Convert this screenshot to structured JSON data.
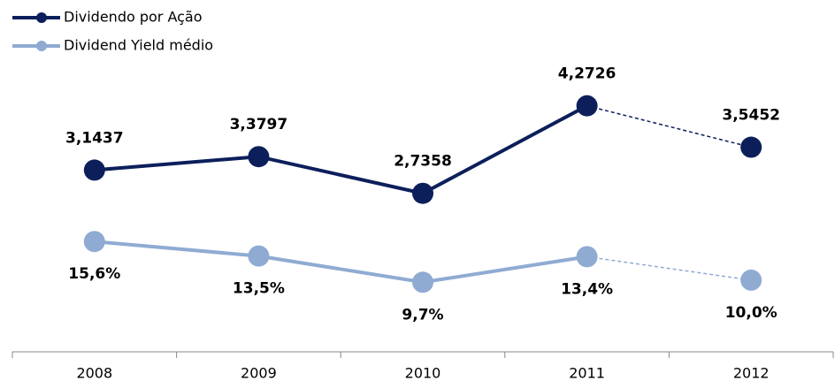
{
  "chart_data": {
    "type": "line",
    "categories": [
      "2008",
      "2009",
      "2010",
      "2011",
      "2012"
    ],
    "ylim": [
      0,
      6.13
    ],
    "y2lim": [
      0,
      50.6
    ],
    "legend": "top-left",
    "series": [
      {
        "name": "Dividendo por Ação",
        "color": "#0c1f5b",
        "dash_last": true,
        "values": [
          3.1437,
          3.3797,
          2.7358,
          4.2726,
          3.5452
        ],
        "value_labels": [
          "3,1437",
          "3,3797",
          "2,7358",
          "4,2726",
          "3,5452"
        ]
      },
      {
        "name": "Dividend Yield médio",
        "color": "#8fabd2",
        "axis": "y2",
        "dash_last": true,
        "values": [
          15.6,
          13.5,
          9.7,
          13.4,
          10.0
        ],
        "value_labels": [
          "15,6%",
          "13,5%",
          "9,7%",
          "13,4%",
          "10,0%"
        ]
      }
    ]
  }
}
